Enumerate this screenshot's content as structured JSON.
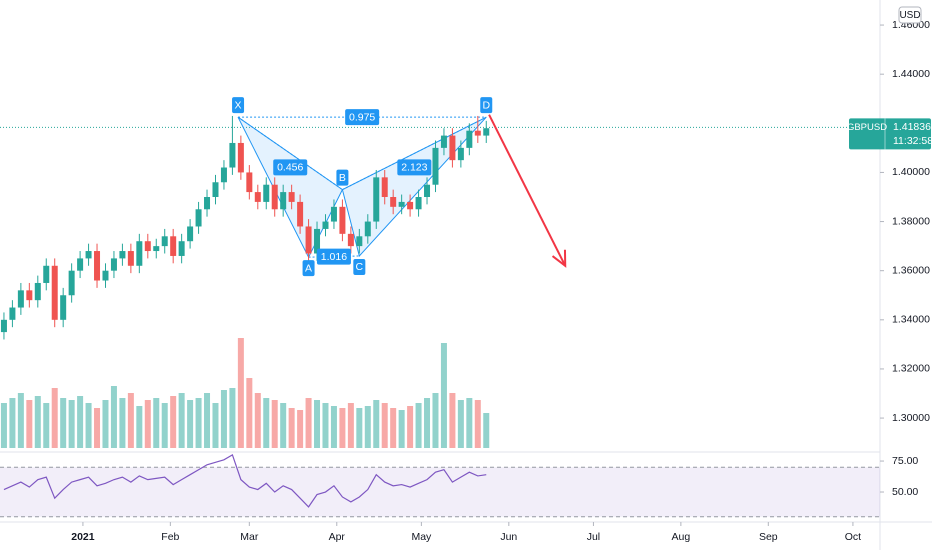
{
  "chart_data": {
    "type": "candlestick",
    "currency": "USD",
    "x": [
      -28,
      -25,
      -22,
      -19,
      -16,
      -13,
      -10,
      -7,
      -4,
      -1,
      2,
      5,
      8,
      11,
      14,
      17,
      20,
      23,
      26,
      29,
      32,
      35,
      38,
      41,
      44,
      47,
      50,
      53,
      56,
      59,
      62,
      65,
      68,
      71,
      74,
      77,
      80,
      83,
      86,
      89,
      92,
      95,
      98,
      101,
      104,
      107,
      110,
      113,
      116,
      119,
      122,
      125,
      128,
      131,
      134,
      137,
      140,
      143
    ],
    "open": [
      1.335,
      1.34,
      1.345,
      1.352,
      1.348,
      1.355,
      1.362,
      1.34,
      1.35,
      1.36,
      1.365,
      1.368,
      1.356,
      1.36,
      1.365,
      1.368,
      1.362,
      1.372,
      1.368,
      1.37,
      1.374,
      1.366,
      1.372,
      1.378,
      1.385,
      1.39,
      1.396,
      1.402,
      1.412,
      1.4,
      1.392,
      1.388,
      1.395,
      1.385,
      1.392,
      1.388,
      1.378,
      1.367,
      1.377,
      1.38,
      1.386,
      1.375,
      1.37,
      1.374,
      1.38,
      1.398,
      1.39,
      1.386,
      1.388,
      1.385,
      1.39,
      1.395,
      1.41,
      1.415,
      1.405,
      1.41,
      1.417,
      1.415
    ],
    "high": [
      1.343,
      1.348,
      1.355,
      1.355,
      1.358,
      1.365,
      1.365,
      1.353,
      1.363,
      1.368,
      1.371,
      1.371,
      1.363,
      1.368,
      1.371,
      1.371,
      1.375,
      1.375,
      1.373,
      1.377,
      1.377,
      1.375,
      1.381,
      1.388,
      1.393,
      1.399,
      1.405,
      1.423,
      1.415,
      1.403,
      1.395,
      1.398,
      1.398,
      1.395,
      1.395,
      1.391,
      1.381,
      1.38,
      1.383,
      1.389,
      1.389,
      1.378,
      1.377,
      1.383,
      1.401,
      1.401,
      1.393,
      1.391,
      1.391,
      1.393,
      1.398,
      1.413,
      1.418,
      1.418,
      1.413,
      1.42,
      1.423,
      1.421
    ],
    "low": [
      1.332,
      1.337,
      1.342,
      1.345,
      1.345,
      1.352,
      1.337,
      1.337,
      1.347,
      1.357,
      1.362,
      1.353,
      1.353,
      1.357,
      1.362,
      1.359,
      1.359,
      1.365,
      1.365,
      1.367,
      1.363,
      1.363,
      1.369,
      1.375,
      1.382,
      1.387,
      1.393,
      1.399,
      1.397,
      1.389,
      1.385,
      1.385,
      1.382,
      1.382,
      1.385,
      1.375,
      1.364,
      1.364,
      1.374,
      1.377,
      1.372,
      1.367,
      1.367,
      1.371,
      1.377,
      1.387,
      1.383,
      1.383,
      1.382,
      1.382,
      1.387,
      1.392,
      1.407,
      1.402,
      1.402,
      1.407,
      1.412,
      1.412
    ],
    "close": [
      1.34,
      1.345,
      1.352,
      1.348,
      1.355,
      1.362,
      1.34,
      1.35,
      1.36,
      1.365,
      1.368,
      1.356,
      1.36,
      1.365,
      1.368,
      1.362,
      1.372,
      1.368,
      1.37,
      1.374,
      1.366,
      1.372,
      1.378,
      1.385,
      1.39,
      1.396,
      1.402,
      1.412,
      1.4,
      1.392,
      1.388,
      1.395,
      1.385,
      1.392,
      1.388,
      1.378,
      1.367,
      1.377,
      1.38,
      1.386,
      1.375,
      1.37,
      1.374,
      1.38,
      1.398,
      1.39,
      1.386,
      1.388,
      1.385,
      1.39,
      1.395,
      1.41,
      1.415,
      1.405,
      1.41,
      1.417,
      1.415,
      1.418
    ],
    "up_color": "#26a69a",
    "down_color": "#ef5350",
    "xlim": [
      -29.4,
      282.6
    ],
    "xticks": [
      {
        "value": 0,
        "label": "2021"
      },
      {
        "value": 31,
        "label": "Feb"
      },
      {
        "value": 59,
        "label": "Mar"
      },
      {
        "value": 90,
        "label": "Apr"
      },
      {
        "value": 120,
        "label": "May"
      },
      {
        "value": 151,
        "label": "Jun"
      },
      {
        "value": 181,
        "label": "Jul"
      },
      {
        "value": 212,
        "label": "Aug"
      },
      {
        "value": 243,
        "label": "Sep"
      },
      {
        "value": 273,
        "label": "Oct"
      }
    ],
    "ylim": [
      1.287,
      1.4702
    ],
    "yticks": [
      {
        "value": 1.3,
        "label": "1.30000"
      },
      {
        "value": 1.32,
        "label": "1.32000"
      },
      {
        "value": 1.34,
        "label": "1.34000"
      },
      {
        "value": 1.36,
        "label": "1.36000"
      },
      {
        "value": 1.38,
        "label": "1.38000"
      },
      {
        "value": 1.4,
        "label": "1.40000"
      },
      {
        "value": 1.44,
        "label": "1.44000"
      },
      {
        "value": 1.46,
        "label": "1.46000"
      }
    ],
    "grid": false,
    "volume": {
      "ylim": [
        0,
        120
      ],
      "values": [
        45,
        50,
        55,
        48,
        52,
        45,
        60,
        50,
        48,
        52,
        45,
        40,
        48,
        62,
        50,
        55,
        42,
        48,
        50,
        45,
        52,
        55,
        48,
        50,
        55,
        45,
        58,
        60,
        110,
        70,
        55,
        50,
        48,
        45,
        40,
        38,
        50,
        48,
        45,
        42,
        40,
        45,
        40,
        42,
        48,
        45,
        40,
        38,
        42,
        45,
        50,
        55,
        105,
        55,
        48,
        50,
        48,
        35
      ]
    },
    "rsi": {
      "ylim": [
        26.6,
        81.5
      ],
      "yticks": [
        {
          "value": 75,
          "label": "75.00"
        },
        {
          "value": 50,
          "label": "50.00"
        }
      ],
      "bands": [
        30,
        70
      ],
      "color": "#7e57c2",
      "values": [
        52,
        55,
        58,
        54,
        60,
        62,
        45,
        52,
        58,
        60,
        62,
        55,
        57,
        60,
        62,
        58,
        63,
        60,
        61,
        62,
        56,
        60,
        64,
        68,
        72,
        74,
        76,
        80,
        60,
        54,
        52,
        57,
        50,
        55,
        52,
        45,
        38,
        48,
        50,
        55,
        46,
        42,
        46,
        52,
        64,
        58,
        55,
        56,
        54,
        57,
        60,
        66,
        68,
        58,
        62,
        66,
        63,
        64
      ]
    },
    "last_price": {
      "symbol": "GBPUSD",
      "value": 1.41836,
      "countdown": "11:32:58",
      "color": "#26a69a"
    },
    "harmonic": {
      "color": "#2196f3",
      "points": [
        {
          "label": "X",
          "x": 55,
          "y": 1.4225
        },
        {
          "label": "A",
          "x": 80,
          "y": 1.3655
        },
        {
          "label": "B",
          "x": 92,
          "y": 1.393
        },
        {
          "label": "C",
          "x": 98,
          "y": 1.366
        },
        {
          "label": "D",
          "x": 143,
          "y": 1.4225
        }
      ],
      "ratios": [
        0.456,
        1.016,
        2.123,
        0.975
      ]
    },
    "projection": {
      "color": "#f23645",
      "x": [
        144,
        171
      ],
      "y": [
        1.4235,
        1.362
      ]
    }
  }
}
